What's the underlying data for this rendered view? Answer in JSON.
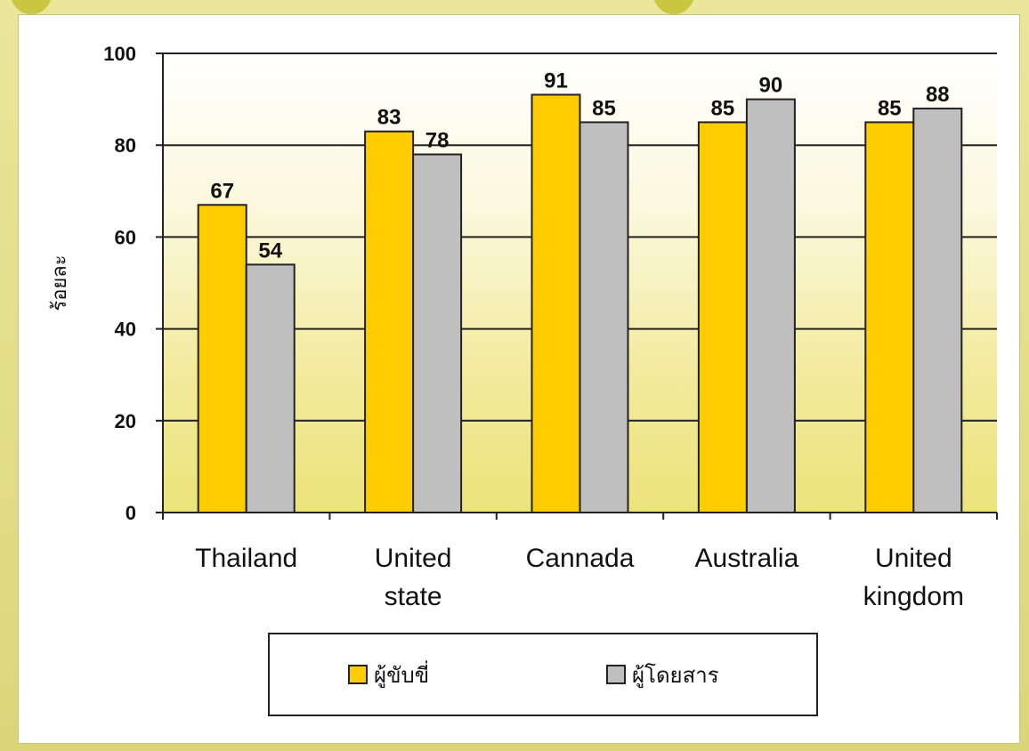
{
  "chart_data": {
    "type": "bar",
    "categories": [
      [
        "Thailand"
      ],
      [
        "United",
        "state"
      ],
      [
        "Cannada"
      ],
      [
        "Australia"
      ],
      [
        "United",
        "kingdom"
      ]
    ],
    "series": [
      {
        "name": "ผู้ขับขี่",
        "values": [
          67,
          83,
          91,
          85,
          85
        ],
        "color": "#ffcc00"
      },
      {
        "name": "ผู้โดยสาร",
        "values": [
          54,
          78,
          85,
          90,
          88
        ],
        "color": "#bfbfbf"
      }
    ],
    "ylabel": "ร้อยละ",
    "ylim": [
      0,
      100
    ],
    "yticks": [
      0,
      20,
      40,
      60,
      80,
      100
    ],
    "grid": true,
    "legend": "bottom"
  }
}
